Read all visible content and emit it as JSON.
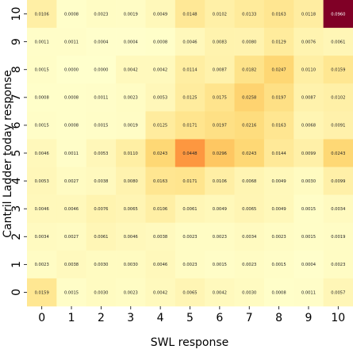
{
  "chart_data": {
    "type": "heatmap",
    "xlabel": "SWL response",
    "ylabel": "Cantril Ladder today response",
    "x_categories": [
      "0",
      "1",
      "2",
      "3",
      "4",
      "5",
      "6",
      "7",
      "8",
      "9",
      "10"
    ],
    "y_categories": [
      "10",
      "9",
      "8",
      "7",
      "6",
      "5",
      "4",
      "3",
      "2",
      "1",
      "0"
    ],
    "values": [
      [
        "0.0106",
        "0.0008",
        "0.0023",
        "0.0019",
        "0.0049",
        "0.0148",
        "0.0102",
        "0.0133",
        "0.0163",
        "0.0118",
        "0.0960"
      ],
      [
        "0.0011",
        "0.0011",
        "0.0004",
        "0.0004",
        "0.0008",
        "0.0046",
        "0.0083",
        "0.0080",
        "0.0129",
        "0.0076",
        "0.0061"
      ],
      [
        "0.0015",
        "0.0000",
        "0.0000",
        "0.0042",
        "0.0042",
        "0.0114",
        "0.0087",
        "0.0182",
        "0.0247",
        "0.0110",
        "0.0159"
      ],
      [
        "0.0008",
        "0.0008",
        "0.0011",
        "0.0023",
        "0.0053",
        "0.0125",
        "0.0175",
        "0.0258",
        "0.0197",
        "0.0087",
        "0.0102"
      ],
      [
        "0.0015",
        "0.0008",
        "0.0015",
        "0.0019",
        "0.0125",
        "0.0171",
        "0.0197",
        "0.0216",
        "0.0163",
        "0.0068",
        "0.0091"
      ],
      [
        "0.0046",
        "0.0011",
        "0.0053",
        "0.0110",
        "0.0243",
        "0.0448",
        "0.0296",
        "0.0243",
        "0.0144",
        "0.0099",
        "0.0243"
      ],
      [
        "0.0053",
        "0.0027",
        "0.0038",
        "0.0080",
        "0.0163",
        "0.0171",
        "0.0106",
        "0.0068",
        "0.0049",
        "0.0030",
        "0.0099"
      ],
      [
        "0.0046",
        "0.0046",
        "0.0076",
        "0.0065",
        "0.0106",
        "0.0061",
        "0.0049",
        "0.0065",
        "0.0049",
        "0.0015",
        "0.0034"
      ],
      [
        "0.0034",
        "0.0027",
        "0.0061",
        "0.0046",
        "0.0038",
        "0.0023",
        "0.0023",
        "0.0034",
        "0.0023",
        "0.0015",
        "0.0019"
      ],
      [
        "0.0023",
        "0.0038",
        "0.0030",
        "0.0030",
        "0.0046",
        "0.0023",
        "0.0015",
        "0.0023",
        "0.0015",
        "0.0004",
        "0.0023"
      ],
      [
        "0.0159",
        "0.0015",
        "0.0030",
        "0.0023",
        "0.0042",
        "0.0065",
        "0.0042",
        "0.0030",
        "0.0008",
        "0.0011",
        "0.0057"
      ]
    ],
    "colormap": [
      "#ffffcc",
      "#ffeda0",
      "#fed976",
      "#feb24c",
      "#fd8d3c",
      "#fc4e2a",
      "#e31a1c",
      "#bd0026",
      "#800026"
    ],
    "vmax": 0.096,
    "grid": false,
    "legend": "none"
  }
}
